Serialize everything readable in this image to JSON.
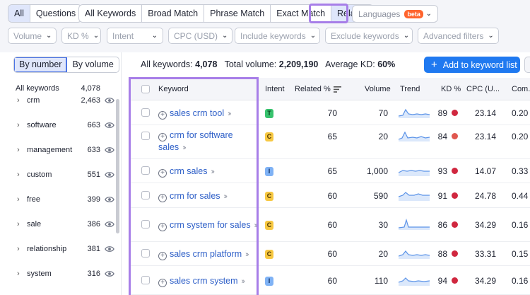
{
  "tabs_scope": [
    "All",
    "Questions"
  ],
  "tabs_match": [
    "All Keywords",
    "Broad Match",
    "Phrase Match",
    "Exact Match",
    "Related"
  ],
  "languages": {
    "label": "Languages",
    "badge": "beta"
  },
  "filters": [
    "Volume",
    "KD %",
    "Intent",
    "CPC (USD)",
    "Include keywords",
    "Exclude keywords",
    "Advanced filters"
  ],
  "sidebar": {
    "toggle": [
      "By number",
      "By volume"
    ],
    "header": {
      "label": "All keywords",
      "count": "4,078"
    },
    "items": [
      {
        "label": "crm",
        "count": "2,463"
      },
      {
        "label": "software",
        "count": "663"
      },
      {
        "label": "management",
        "count": "633"
      },
      {
        "label": "custom",
        "count": "551"
      },
      {
        "label": "free",
        "count": "399"
      },
      {
        "label": "sale",
        "count": "386"
      },
      {
        "label": "relationship",
        "count": "381"
      },
      {
        "label": "system",
        "count": "316"
      }
    ]
  },
  "summary": {
    "all_keywords_label": "All keywords:",
    "all_keywords": "4,078",
    "total_volume_label": "Total volume:",
    "total_volume": "2,209,190",
    "avg_kd_label": "Average KD:",
    "avg_kd": "60%"
  },
  "add_button": "Add to keyword list",
  "columns": [
    "Keyword",
    "Intent",
    "Related %",
    "Volume",
    "Trend",
    "KD %",
    "CPC (U...",
    "Com."
  ],
  "colors": {
    "accent": "#1f79f0",
    "highlight": "#a77ee8",
    "kd_hard": "#d0273f",
    "kd_mid": "#e0574f"
  },
  "rows": [
    {
      "keyword": [
        "sales crm tool"
      ],
      "intent": "T",
      "related": "70",
      "volume": "70",
      "kd": "89",
      "kd_color": "#d0273f",
      "cpc": "23.14",
      "com": "0.20"
    },
    {
      "keyword": [
        "crm for software",
        "sales"
      ],
      "intent": "C",
      "related": "65",
      "volume": "20",
      "kd": "84",
      "kd_color": "#e0574f",
      "cpc": "23.14",
      "com": "0.20"
    },
    {
      "keyword": [
        "crm sales"
      ],
      "intent": "I",
      "related": "65",
      "volume": "1,000",
      "kd": "93",
      "kd_color": "#d0273f",
      "cpc": "14.07",
      "com": "0.33"
    },
    {
      "keyword": [
        "crm for sales"
      ],
      "intent": "C",
      "related": "60",
      "volume": "590",
      "kd": "91",
      "kd_color": "#d0273f",
      "cpc": "24.78",
      "com": "0.44"
    },
    {
      "keyword": [
        "crm system for sales"
      ],
      "intent": "C",
      "related": "60",
      "volume": "30",
      "kd": "86",
      "kd_color": "#d0273f",
      "cpc": "34.29",
      "com": "0.16"
    },
    {
      "keyword": [
        "sales crm platform"
      ],
      "intent": "C",
      "related": "60",
      "volume": "20",
      "kd": "88",
      "kd_color": "#d0273f",
      "cpc": "33.31",
      "com": "0.15"
    },
    {
      "keyword": [
        "sales crm system"
      ],
      "intent": "I",
      "related": "60",
      "volume": "110",
      "kd": "94",
      "kd_color": "#d0273f",
      "cpc": "34.29",
      "com": "0.16"
    }
  ]
}
